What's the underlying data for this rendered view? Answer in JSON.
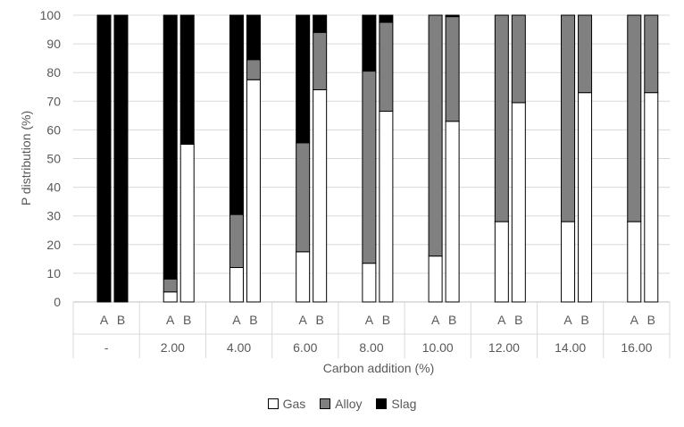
{
  "chart_data": {
    "type": "bar",
    "stacked": true,
    "ylabel": "P distribution (%)",
    "xlabel": "Carbon addition (%)",
    "ylim": [
      0,
      100
    ],
    "yticks": [
      0,
      10,
      20,
      30,
      40,
      50,
      60,
      70,
      80,
      90,
      100
    ],
    "groups": [
      "-",
      "2.00",
      "4.00",
      "6.00",
      "8.00",
      "10.00",
      "12.00",
      "14.00",
      "16.00"
    ],
    "subcategories": [
      "A",
      "B"
    ],
    "series": [
      {
        "name": "Gas",
        "color": "#ffffff",
        "values": [
          [
            0,
            0
          ],
          [
            3.5,
            55
          ],
          [
            12,
            77.5
          ],
          [
            17.5,
            74
          ],
          [
            13.5,
            66.5
          ],
          [
            16,
            63
          ],
          [
            28,
            69.5
          ],
          [
            28,
            73
          ],
          [
            28,
            73
          ]
        ]
      },
      {
        "name": "Alloy",
        "color": "#808080",
        "values": [
          [
            0,
            0
          ],
          [
            4.5,
            0
          ],
          [
            18.5,
            7
          ],
          [
            38,
            20
          ],
          [
            67,
            31
          ],
          [
            84,
            36.5
          ],
          [
            72,
            30.5
          ],
          [
            72,
            27
          ],
          [
            72,
            27
          ]
        ]
      },
      {
        "name": "Slag",
        "color": "#000000",
        "values": [
          [
            100,
            100
          ],
          [
            92,
            45
          ],
          [
            69.5,
            15.5
          ],
          [
            44.5,
            6
          ],
          [
            19.5,
            2.5
          ],
          [
            0,
            0.5
          ],
          [
            0,
            0
          ],
          [
            0,
            0
          ],
          [
            0,
            0
          ]
        ]
      }
    ],
    "legend_position": "bottom",
    "grid": true
  }
}
